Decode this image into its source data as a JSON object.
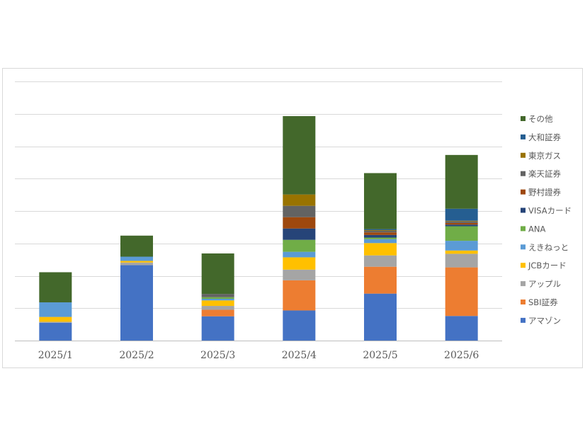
{
  "chart_data": {
    "type": "bar",
    "stacked": true,
    "title": "",
    "xlabel": "",
    "ylabel": "",
    "ylim": [
      0,
      8
    ],
    "grid": true,
    "legend_position": "right",
    "categories": [
      "2025/1",
      "2025/2",
      "2025/3",
      "2025/4",
      "2025/5",
      "2025/6"
    ],
    "series": [
      {
        "name": "アマゾン",
        "color": "#4472c4",
        "values": [
          0.55,
          2.33,
          0.75,
          0.93,
          1.45,
          0.76
        ]
      },
      {
        "name": "SBI証券",
        "color": "#ed7d31",
        "values": [
          0,
          0,
          0.2,
          0.93,
          0.83,
          1.5
        ]
      },
      {
        "name": "アップル",
        "color": "#a5a5a5",
        "values": [
          0.03,
          0.08,
          0.12,
          0.33,
          0.35,
          0.42
        ]
      },
      {
        "name": "JCBカード",
        "color": "#ffc000",
        "values": [
          0.15,
          0.05,
          0.17,
          0.38,
          0.38,
          0.1
        ]
      },
      {
        "name": "えきねっと",
        "color": "#5b9bd5",
        "values": [
          0.45,
          0.13,
          0.05,
          0.17,
          0.12,
          0.3
        ]
      },
      {
        "name": "ANA",
        "color": "#70ad47",
        "values": [
          0,
          0,
          0.05,
          0.37,
          0.05,
          0.45
        ]
      },
      {
        "name": "VISAカード",
        "color": "#264478",
        "values": [
          0,
          0,
          0,
          0.35,
          0.08,
          0.05
        ]
      },
      {
        "name": "野村證券",
        "color": "#9e480e",
        "values": [
          0,
          0,
          0,
          0.35,
          0.08,
          0.05
        ]
      },
      {
        "name": "楽天証券",
        "color": "#636363",
        "values": [
          0,
          0,
          0.1,
          0.35,
          0.05,
          0.05
        ]
      },
      {
        "name": "東京ガス",
        "color": "#997300",
        "values": [
          0,
          0,
          0,
          0.35,
          0.02,
          0.02
        ]
      },
      {
        "name": "大和証券",
        "color": "#255e91",
        "values": [
          0,
          0,
          0,
          0,
          0.03,
          0.37
        ]
      },
      {
        "name": "その他",
        "color": "#43682b",
        "values": [
          0.93,
          0.65,
          1.25,
          2.42,
          1.73,
          1.66
        ]
      }
    ]
  }
}
